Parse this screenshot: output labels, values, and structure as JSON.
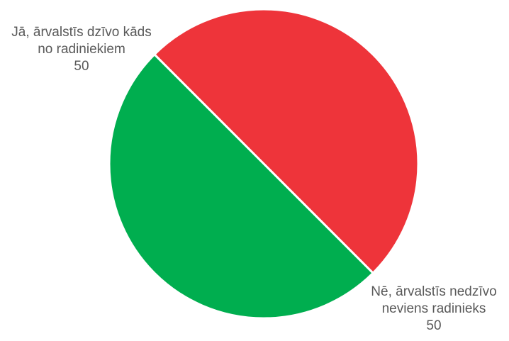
{
  "chart_data": {
    "type": "pie",
    "slices": [
      {
        "label_lines": [
          "Jā, ārvalstīs dzīvo kāds",
          "no radiniekiem"
        ],
        "value": 50,
        "color": "#EE343A"
      },
      {
        "label_lines": [
          "Nē, ārvalstīs nedzīvo",
          "neviens radinieks"
        ],
        "value": 50,
        "color": "#00AE4F"
      }
    ]
  }
}
